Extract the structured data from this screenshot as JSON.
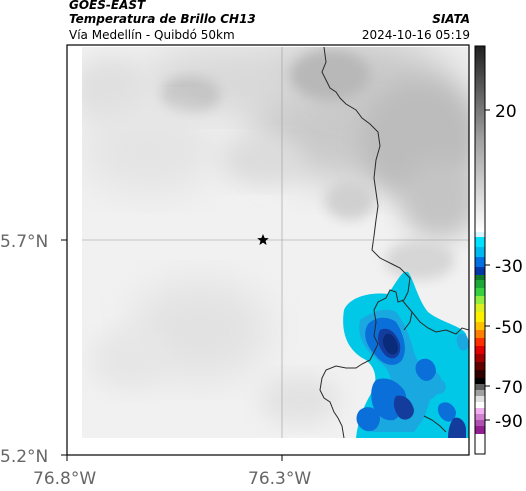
{
  "header": {
    "satellite": "GOES-EAST",
    "product": "Temperatura de Brillo CH13",
    "region": "Vía Medellín - Quibdó 50km",
    "organization": "SIATA",
    "datetime": "2024-10-16 05:19"
  },
  "map": {
    "x_ticks": [
      "76.8°W",
      "76.3°W"
    ],
    "y_ticks": [
      "5.7°N",
      "5.2°N"
    ],
    "marker_icon": "star-icon"
  },
  "colorbar": {
    "ticks": [
      "20",
      "-30",
      "-50",
      "-70",
      "-90"
    ],
    "tick_values": [
      20,
      -30,
      -50,
      -70,
      -90
    ],
    "range": [
      -95,
      45
    ]
  },
  "colors": {
    "frame": "#000000",
    "grid": "#9a9a9a",
    "cloud_cyan": "#00c8e6",
    "cloud_deep": "#0a2a7a"
  }
}
